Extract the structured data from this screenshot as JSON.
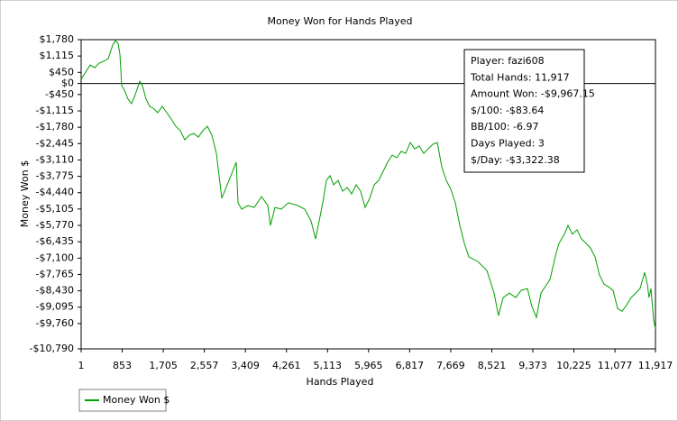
{
  "chart_data": {
    "type": "line",
    "title": "Money Won for Hands Played",
    "x_label": "Hands Played",
    "y_label": "Money Won $",
    "xlim": [
      1,
      11917
    ],
    "ylim": [
      -10790,
      1780
    ],
    "xticks": [
      1,
      853,
      {
        "value": 1705,
        "label": "1,705"
      },
      {
        "value": 2557,
        "label": "2,557"
      },
      {
        "value": 3409,
        "label": "3,409"
      },
      {
        "value": 4261,
        "label": "4,261"
      },
      {
        "value": 5113,
        "label": "5,113"
      },
      {
        "value": 5965,
        "label": "5,965"
      },
      {
        "value": 6817,
        "label": "6,817"
      },
      {
        "value": 7669,
        "label": "7,669"
      },
      {
        "value": 8521,
        "label": "8,521"
      },
      {
        "value": 9373,
        "label": "9,373"
      },
      {
        "value": 10225,
        "label": "10,225"
      },
      {
        "value": 11077,
        "label": "11,077"
      },
      {
        "value": 11917,
        "label": "11,917"
      }
    ],
    "yticks": [
      {
        "value": 1780,
        "label": "$1,780"
      },
      {
        "value": 1115,
        "label": "$1,115"
      },
      {
        "value": 450,
        "label": "$450"
      },
      {
        "value": 0,
        "label": "$0"
      },
      {
        "value": -450,
        "label": "-$450"
      },
      {
        "value": -1115,
        "label": "-$1,115"
      },
      {
        "value": -1780,
        "label": "-$1,780"
      },
      {
        "value": -2445,
        "label": "-$2,445"
      },
      {
        "value": -3110,
        "label": "-$3,110"
      },
      {
        "value": -3775,
        "label": "-$3,775"
      },
      {
        "value": -4440,
        "label": "-$4,440"
      },
      {
        "value": -5105,
        "label": "-$5,105"
      },
      {
        "value": -5770,
        "label": "-$5,770"
      },
      {
        "value": -6435,
        "label": "-$6,435"
      },
      {
        "value": -7100,
        "label": "-$7,100"
      },
      {
        "value": -7765,
        "label": "-$7,765"
      },
      {
        "value": -8430,
        "label": "-$8,430"
      },
      {
        "value": -9095,
        "label": "-$9,095"
      },
      {
        "value": -9760,
        "label": "-$9,760"
      },
      {
        "value": -10790,
        "label": "-$10,790"
      }
    ],
    "zero_line": true,
    "legend": "bottom-left",
    "info_box": [
      "Player: fazi608",
      "Total Hands: 11,917",
      "Amount Won: -$9,967.15",
      "$/100: -$83.64",
      "BB/100: -6.97",
      "Days Played: 3",
      "$/Day: -$3,322.38"
    ],
    "series": [
      {
        "name": "Money Won $",
        "color": "#00a000",
        "x": [
          1,
          95,
          188,
          282,
          375,
          469,
          562,
          656,
          712,
          768,
          805,
          843,
          899,
          974,
          1049,
          1123,
          1217,
          1273,
          1348,
          1423,
          1497,
          1591,
          1684,
          1778,
          1872,
          1965,
          2059,
          2152,
          2246,
          2339,
          2433,
          2526,
          2620,
          2713,
          2807,
          2863,
          2919,
          2994,
          3069,
          3144,
          3218,
          3256,
          3331,
          3462,
          3593,
          3742,
          3873,
          3929,
          4023,
          4154,
          4303,
          4490,
          4640,
          4771,
          4864,
          4939,
          5014,
          5089,
          5164,
          5238,
          5332,
          5425,
          5519,
          5612,
          5706,
          5800,
          5893,
          5987,
          6080,
          6174,
          6267,
          6361,
          6455,
          6548,
          6642,
          6735,
          6829,
          6922,
          7016,
          7109,
          7203,
          7296,
          7390,
          7483,
          7577,
          7670,
          7764,
          7857,
          7951,
          8044,
          8231,
          8418,
          8568,
          8661,
          8755,
          8886,
          9017,
          9129,
          9260,
          9354,
          9447,
          9541,
          9728,
          9859,
          9915,
          10027,
          10102,
          10195,
          10289,
          10382,
          10476,
          10569,
          10663,
          10756,
          10850,
          10944,
          11037,
          11131,
          11224,
          11318,
          11411,
          11505,
          11598,
          11692,
          11748,
          11785,
          11823,
          11879,
          11917
        ],
        "values": [
          170,
          460,
          750,
          640,
          830,
          900,
          1010,
          1560,
          1740,
          1630,
          1190,
          -90,
          -270,
          -640,
          -820,
          -460,
          90,
          -90,
          -640,
          -930,
          -1010,
          -1190,
          -930,
          -1190,
          -1450,
          -1740,
          -1920,
          -2290,
          -2100,
          -2030,
          -2180,
          -1920,
          -1740,
          -2100,
          -2840,
          -3750,
          -4670,
          -4300,
          -3940,
          -3570,
          -3200,
          -4850,
          -5110,
          -4960,
          -5040,
          -4600,
          -4960,
          -5770,
          -5040,
          -5110,
          -4850,
          -4960,
          -5110,
          -5590,
          -6320,
          -5590,
          -4850,
          -3940,
          -3750,
          -4120,
          -3940,
          -4380,
          -4230,
          -4490,
          -4120,
          -4380,
          -5040,
          -4670,
          -4120,
          -3940,
          -3570,
          -3200,
          -2910,
          -3020,
          -2760,
          -2840,
          -2400,
          -2660,
          -2540,
          -2840,
          -2660,
          -2470,
          -2400,
          -3390,
          -3940,
          -4300,
          -4850,
          -5770,
          -6500,
          -7050,
          -7240,
          -7600,
          -8520,
          -9440,
          -8710,
          -8520,
          -8710,
          -8410,
          -8340,
          -9070,
          -9510,
          -8520,
          -7970,
          -6870,
          -6500,
          -6130,
          -5770,
          -6130,
          -5950,
          -6320,
          -6500,
          -6690,
          -7050,
          -7790,
          -8160,
          -8270,
          -8410,
          -9150,
          -9260,
          -9010,
          -8710,
          -8520,
          -8340,
          -7680,
          -8160,
          -8710,
          -8340,
          -9620,
          -9967
        ]
      }
    ]
  }
}
